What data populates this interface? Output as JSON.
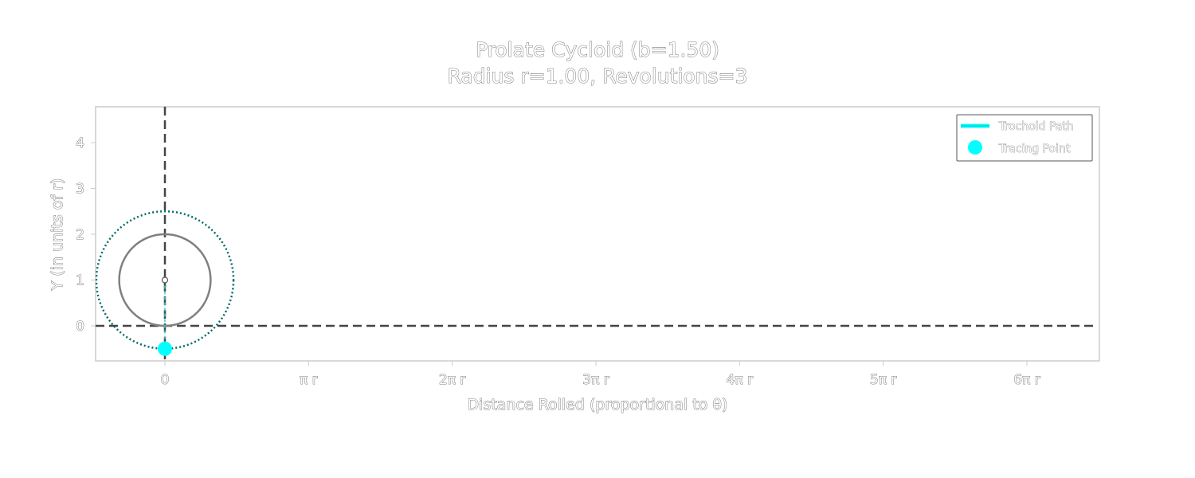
{
  "chart_data": {
    "type": "line",
    "title": "Prolate Cycloid (b=1.50)",
    "subtitle": "Radius r=1.00, Revolutions=3",
    "xlabel": "Distance Rolled (proportional to θ)",
    "ylabel": "Y (in units of r)",
    "x_tick_labels": [
      "0",
      "π r",
      "2π r",
      "3π r",
      "4π r",
      "5π r",
      "6π r"
    ],
    "x_ticks": [
      0,
      3.14159,
      6.28319,
      9.42478,
      12.56637,
      15.70796,
      18.84956
    ],
    "y_tick_labels": [
      "0",
      "1",
      "2",
      "3",
      "4"
    ],
    "y_ticks": [
      0,
      1,
      2,
      3,
      4
    ],
    "xlim": [
      -3.0,
      20.0
    ],
    "ylim": [
      -0.75,
      4.75
    ],
    "grid": false,
    "legend": {
      "placement": "top-right",
      "entries": [
        "Trochoid Path",
        "Tracing Point"
      ]
    },
    "series": [
      {
        "name": "Trochoid Path",
        "x": [
          0,
          0
        ],
        "y": [
          -0.5,
          -0.5
        ]
      },
      {
        "name": "Tracing Point",
        "x": [
          0
        ],
        "y": [
          -0.5
        ]
      }
    ],
    "rolling_circle": {
      "center": [
        0,
        1
      ],
      "radius": 1.0
    },
    "tracing_radius_circle": {
      "center": [
        0,
        1
      ],
      "radius": 1.5
    },
    "reference_lines": {
      "vertical_x": 0,
      "horizontal_y": 0
    },
    "colors": {
      "path": "#00ffff",
      "point": "#00ffff",
      "rolling_circle": "#808080",
      "tracing_circle": "#006b6b",
      "reference": "#444444",
      "frame": "#cccccc"
    }
  }
}
